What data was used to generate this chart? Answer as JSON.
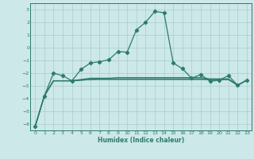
{
  "xlabel": "Humidex (Indice chaleur)",
  "bg_color": "#cce8e8",
  "grid_color": "#aacccc",
  "line_color": "#2d7a6e",
  "xlim": [
    -0.5,
    23.5
  ],
  "ylim": [
    -6.5,
    3.5
  ],
  "yticks": [
    -6,
    -5,
    -4,
    -3,
    -2,
    -1,
    0,
    1,
    2,
    3
  ],
  "xticks": [
    0,
    1,
    2,
    3,
    4,
    5,
    6,
    7,
    8,
    9,
    10,
    11,
    12,
    13,
    14,
    15,
    16,
    17,
    18,
    19,
    20,
    21,
    22,
    23
  ],
  "line_with_markers_x": [
    0,
    1,
    2,
    3,
    4,
    5,
    6,
    7,
    8,
    9,
    10,
    11,
    12,
    13,
    14,
    15,
    16,
    17,
    18,
    19,
    20,
    21,
    22,
    23
  ],
  "line_with_markers_y": [
    -6.2,
    -3.8,
    -2.0,
    -2.2,
    -2.6,
    -1.7,
    -1.2,
    -1.1,
    -0.95,
    -0.3,
    -0.35,
    1.4,
    2.0,
    2.85,
    2.75,
    -1.2,
    -1.65,
    -2.4,
    -2.1,
    -2.65,
    -2.55,
    -2.2,
    -2.95,
    -2.55
  ],
  "flat_line1_x": [
    0,
    1,
    2,
    3,
    4,
    5,
    6,
    7,
    8,
    9,
    10,
    11,
    12,
    13,
    14,
    15,
    16,
    17,
    18,
    19,
    20,
    21,
    22,
    23
  ],
  "flat_line1_y": [
    -6.2,
    -3.8,
    -2.6,
    -2.6,
    -2.6,
    -2.55,
    -2.5,
    -2.5,
    -2.5,
    -2.5,
    -2.5,
    -2.5,
    -2.5,
    -2.5,
    -2.5,
    -2.5,
    -2.5,
    -2.5,
    -2.5,
    -2.5,
    -2.5,
    -2.5,
    -2.95,
    -2.55
  ],
  "flat_line2_x": [
    0,
    1,
    2,
    3,
    4,
    5,
    6,
    7,
    8,
    9,
    10,
    11,
    12,
    13,
    14,
    15,
    16,
    17,
    18,
    19,
    20,
    21,
    22,
    23
  ],
  "flat_line2_y": [
    -6.2,
    -3.8,
    -2.6,
    -2.6,
    -2.6,
    -2.55,
    -2.5,
    -2.45,
    -2.45,
    -2.45,
    -2.45,
    -2.45,
    -2.45,
    -2.45,
    -2.45,
    -2.45,
    -2.45,
    -2.45,
    -2.45,
    -2.5,
    -2.5,
    -2.5,
    -2.95,
    -2.55
  ],
  "flat_line3_x": [
    0,
    1,
    2,
    3,
    4,
    5,
    6,
    7,
    8,
    9,
    10,
    11,
    12,
    13,
    14,
    15,
    16,
    17,
    18,
    19,
    20,
    21,
    22,
    23
  ],
  "flat_line3_y": [
    -6.2,
    -3.8,
    -2.6,
    -2.6,
    -2.6,
    -2.5,
    -2.4,
    -2.4,
    -2.4,
    -2.35,
    -2.35,
    -2.35,
    -2.35,
    -2.35,
    -2.35,
    -2.35,
    -2.35,
    -2.35,
    -2.35,
    -2.45,
    -2.45,
    -2.45,
    -2.95,
    -2.55
  ]
}
